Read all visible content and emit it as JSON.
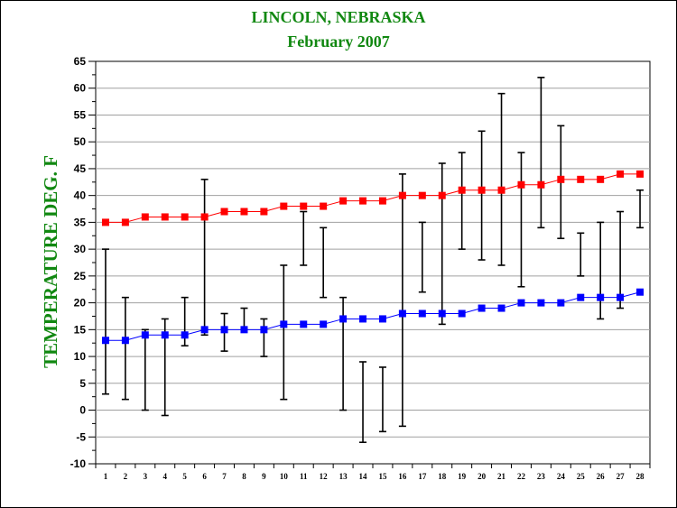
{
  "chart_data": {
    "type": "line",
    "title": "LINCOLN, NEBRASKA",
    "subtitle": "February  2007",
    "ylabel": "TEMPERATURE DEG. F",
    "xlabel": "",
    "ylim": [
      -10,
      65
    ],
    "yticks": [
      -10,
      -5,
      0,
      5,
      10,
      15,
      20,
      25,
      30,
      35,
      40,
      45,
      50,
      55,
      60,
      65
    ],
    "x": [
      1,
      2,
      3,
      4,
      5,
      6,
      7,
      8,
      9,
      10,
      11,
      12,
      13,
      14,
      15,
      16,
      17,
      18,
      19,
      20,
      21,
      22,
      23,
      24,
      25,
      26,
      27,
      28
    ],
    "series": [
      {
        "name": "",
        "color": "#ff0000",
        "values": [
          35,
          35,
          36,
          36,
          36,
          36,
          37,
          37,
          37,
          38,
          38,
          38,
          39,
          39,
          39,
          40,
          40,
          40,
          41,
          41,
          41,
          42,
          42,
          43,
          43,
          43,
          44,
          44
        ]
      },
      {
        "name": "",
        "color": "#0000ff",
        "values": [
          13,
          13,
          14,
          14,
          14,
          15,
          15,
          15,
          15,
          16,
          16,
          16,
          17,
          17,
          17,
          18,
          18,
          18,
          18,
          19,
          19,
          20,
          20,
          20,
          21,
          21,
          21,
          22
        ]
      }
    ],
    "ranges": {
      "color": "#000000",
      "high": [
        30,
        21,
        15,
        17,
        21,
        43,
        18,
        19,
        17,
        27,
        37,
        34,
        21,
        9,
        8,
        44,
        35,
        46,
        48,
        52,
        59,
        48,
        62,
        53,
        33,
        35,
        37,
        41
      ],
      "low": [
        3,
        2,
        0,
        -1,
        12,
        14,
        11,
        15,
        10,
        2,
        27,
        21,
        0,
        -6,
        -4,
        -3,
        22,
        16,
        30,
        28,
        27,
        23,
        34,
        32,
        25,
        17,
        19,
        34
      ]
    },
    "grid": true
  }
}
